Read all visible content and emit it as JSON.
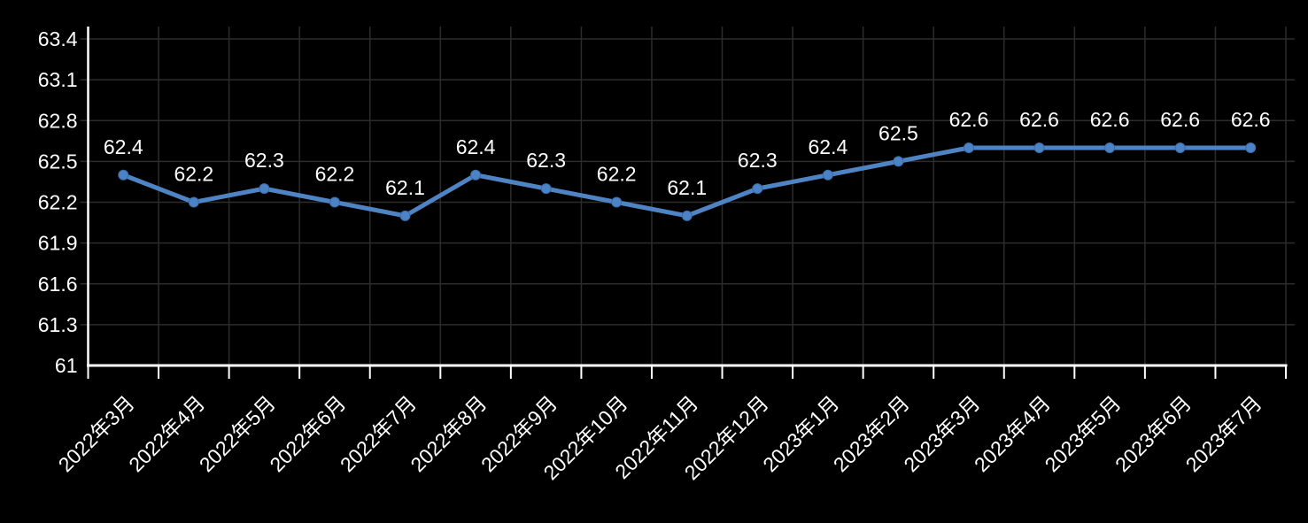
{
  "chart_data": {
    "type": "line",
    "title": "",
    "xlabel": "",
    "ylabel": "",
    "categories": [
      "2022年3月",
      "2022年4月",
      "2022年5月",
      "2022年6月",
      "2022年7月",
      "2022年8月",
      "2022年9月",
      "2022年10月",
      "2022年11月",
      "2022年12月",
      "2023年1月",
      "2023年2月",
      "2023年3月",
      "2023年4月",
      "2023年5月",
      "2023年6月",
      "2023年7月"
    ],
    "series": [
      {
        "name": "",
        "values": [
          62.4,
          62.2,
          62.3,
          62.2,
          62.1,
          62.4,
          62.3,
          62.2,
          62.1,
          62.3,
          62.4,
          62.5,
          62.6,
          62.6,
          62.6,
          62.6,
          62.6
        ]
      }
    ],
    "data_labels": [
      "62.4",
      "62.2",
      "62.3",
      "62.2",
      "62.1",
      "62.4",
      "62.3",
      "62.2",
      "62.1",
      "62.3",
      "62.4",
      "62.5",
      "62.6",
      "62.6",
      "62.6",
      "62.6",
      "62.6"
    ],
    "y_ticks": [
      63.4,
      63.1,
      62.8,
      62.5,
      62.2,
      61.9,
      61.6,
      61.3,
      61
    ],
    "y_tick_labels": [
      "63.4",
      "63.1",
      "62.8",
      "62.5",
      "62.2",
      "61.9",
      "61.6",
      "61.3",
      "61"
    ],
    "ylim": [
      61,
      63.4
    ],
    "grid": true,
    "legend": "none",
    "x_label_rotation": -45,
    "data_label_position": "above",
    "colors": {
      "line": "#4f84c4",
      "marker_fill": "#4c82c6",
      "marker_edge": "#3b6ca8",
      "grid": "#2c2c2c",
      "axis": "#ffffff",
      "text": "#ffffff",
      "background": "#000000"
    }
  }
}
